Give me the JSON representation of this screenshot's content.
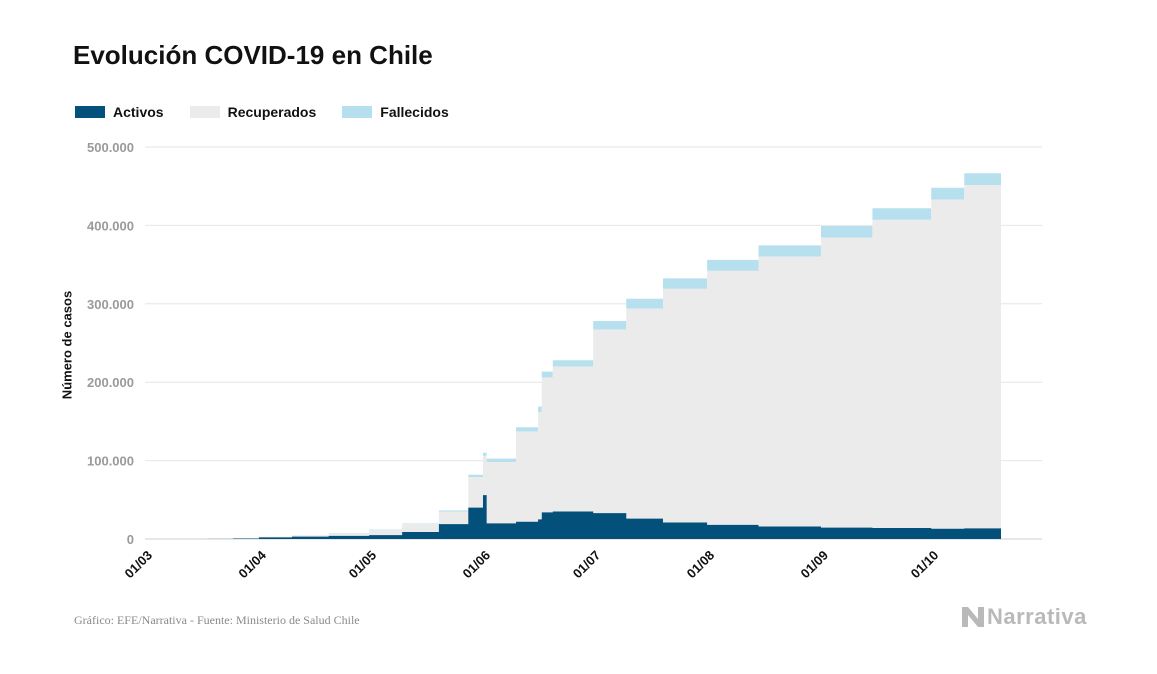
{
  "title": "Evolución COVID-19 en Chile",
  "legend": [
    {
      "label": "Activos",
      "color": "#03507a"
    },
    {
      "label": "Recuperados",
      "color": "#ebebeb"
    },
    {
      "label": "Fallecidos",
      "color": "#b7e0ef"
    }
  ],
  "footer": "Gráfico: EFE/Narrativa - Fuente: Ministerio de Salud Chile",
  "brand": "Narrativa",
  "chart_data": {
    "type": "area",
    "stacked": true,
    "ylabel": "Número de casos",
    "xlabel": "",
    "ylim": [
      0,
      500000
    ],
    "yticks": [
      "0",
      "100.000",
      "200.000",
      "300.000",
      "400.000",
      "500.000"
    ],
    "ytick_values": [
      0,
      100000,
      200000,
      300000,
      400000,
      500000
    ],
    "xticks": [
      "01/03",
      "01/04",
      "01/05",
      "01/06",
      "01/07",
      "01/08",
      "01/09",
      "01/10"
    ],
    "xtick_dates": [
      "2020-03-01",
      "2020-04-01",
      "2020-05-01",
      "2020-06-01",
      "2020-07-01",
      "2020-08-01",
      "2020-09-01",
      "2020-10-01"
    ],
    "x_range": [
      "2020-03-01",
      "2020-10-20"
    ],
    "grid": true,
    "legend_position": "top-left",
    "x": [
      "2020-03-03",
      "2020-03-18",
      "2020-03-25",
      "2020-04-01",
      "2020-04-10",
      "2020-04-20",
      "2020-05-01",
      "2020-05-10",
      "2020-05-20",
      "2020-05-28",
      "2020-06-01",
      "2020-06-02",
      "2020-06-10",
      "2020-06-16",
      "2020-06-17",
      "2020-06-20",
      "2020-07-01",
      "2020-07-10",
      "2020-07-20",
      "2020-08-01",
      "2020-08-15",
      "2020-09-01",
      "2020-09-15",
      "2020-10-01",
      "2020-10-10",
      "2020-10-20"
    ],
    "series": [
      {
        "name": "Activos",
        "color": "#03507a",
        "values": [
          1,
          200,
          700,
          2000,
          3000,
          4000,
          5000,
          9000,
          19000,
          40000,
          56000,
          20000,
          22000,
          25000,
          34000,
          35000,
          33000,
          26000,
          21000,
          18000,
          16000,
          14500,
          14000,
          13000,
          13500,
          12500
        ]
      },
      {
        "name": "Recuperados",
        "color": "#ebebeb",
        "values": [
          0,
          50,
          300,
          800,
          1500,
          3000,
          6500,
          10000,
          16000,
          39000,
          50000,
          78000,
          115000,
          137000,
          172000,
          185000,
          234000,
          268000,
          298000,
          324000,
          344000,
          370000,
          393000,
          420000,
          438000,
          451000
        ]
      },
      {
        "name": "Fallecidos",
        "color": "#b7e0ef",
        "values": [
          0,
          0,
          10,
          100,
          200,
          300,
          500,
          800,
          1500,
          3000,
          4000,
          4500,
          5500,
          7000,
          7500,
          8000,
          11000,
          12500,
          13500,
          14000,
          14500,
          14800,
          14950,
          15000,
          15050,
          15100
        ]
      }
    ]
  }
}
